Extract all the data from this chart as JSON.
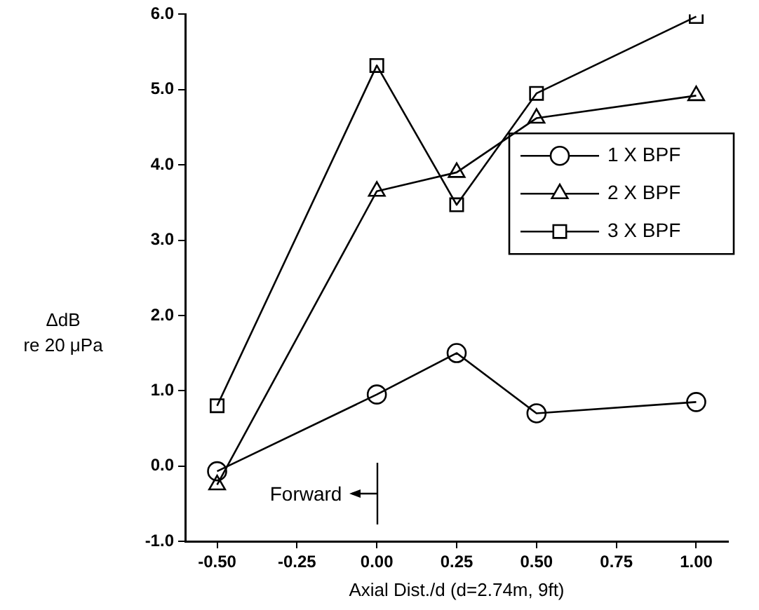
{
  "chart_data": {
    "type": "line",
    "xlabel": "Axial Dist./d (d=2.74m, 9ft)",
    "ylabel": "ΔdB\nre 20 μPa",
    "x": [
      -0.5,
      0,
      0.25,
      0.5,
      1
    ],
    "series": [
      {
        "name": "1 X BPF",
        "color": "#000000",
        "marker": "circle",
        "values": [
          -0.07,
          0.95,
          1.5,
          0.7,
          0.85
        ]
      },
      {
        "name": "2 X BPF",
        "color": "#000000",
        "marker": "triangle",
        "values": [
          -0.25,
          3.65,
          3.9,
          4.62,
          4.92
        ]
      },
      {
        "name": "3 X BPF",
        "color": "#000000",
        "marker": "square",
        "values": [
          0.8,
          5.32,
          3.47,
          4.95,
          5.97
        ]
      }
    ],
    "xlim": [
      -0.6,
      1.1
    ],
    "ylim": [
      -1,
      6
    ],
    "xticks": [
      {
        "value": -0.5,
        "label": "-0.50"
      },
      {
        "value": -0.25,
        "label": "-0.25"
      },
      {
        "value": 0,
        "label": "0.00"
      },
      {
        "value": 0.25,
        "label": "0.25"
      },
      {
        "value": 0.5,
        "label": "0.50"
      },
      {
        "value": 0.75,
        "label": "0.75"
      },
      {
        "value": 1,
        "label": "1.00"
      }
    ],
    "yticks": [
      {
        "value": -1,
        "label": "-1.0"
      },
      {
        "value": 0,
        "label": "0.0"
      },
      {
        "value": 1,
        "label": "1.0"
      },
      {
        "value": 2,
        "label": "2.0"
      },
      {
        "value": 3,
        "label": "3.0"
      },
      {
        "value": 4,
        "label": "4.0"
      },
      {
        "value": 5,
        "label": "5.0"
      },
      {
        "value": 6,
        "label": "6.0"
      }
    ],
    "annotations": [
      "Forward"
    ],
    "grid": false,
    "legend": "right",
    "line_style": "solid"
  }
}
